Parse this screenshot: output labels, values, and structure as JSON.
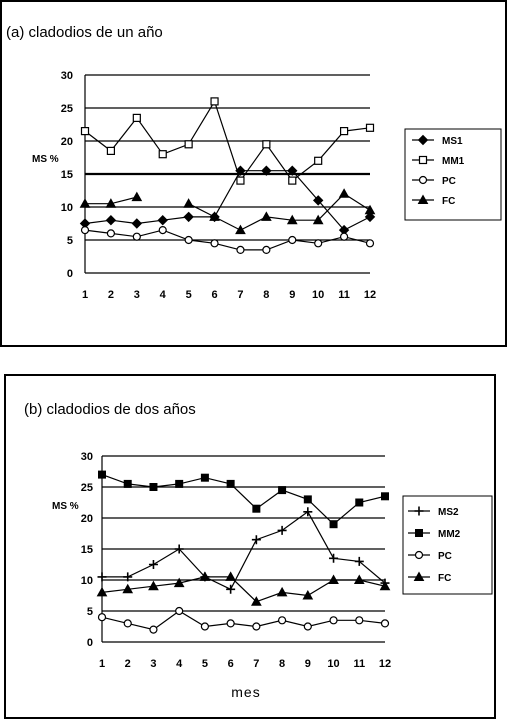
{
  "chart_data": [
    {
      "type": "line",
      "title": "(a) cladodios de un año",
      "ylabel": "MS %",
      "xlabel": "",
      "categories": [
        "1",
        "2",
        "3",
        "4",
        "5",
        "6",
        "7",
        "8",
        "9",
        "10",
        "11",
        "12"
      ],
      "ylim": [
        0,
        30
      ],
      "yticks": [
        0,
        5,
        10,
        15,
        20,
        25,
        30
      ],
      "grid": true,
      "legend_position": "right",
      "series": [
        {
          "name": "MS1",
          "marker": "diamond",
          "values": [
            7.5,
            8,
            7.5,
            8,
            8.5,
            8.5,
            15.5,
            15.5,
            15.5,
            11,
            6.5,
            8.5
          ]
        },
        {
          "name": "MM1",
          "marker": "square",
          "values": [
            21.5,
            18.5,
            23.5,
            18,
            19.5,
            26,
            14,
            19.5,
            14,
            17,
            21.5,
            22
          ]
        },
        {
          "name": "PC",
          "marker": "circle",
          "values": [
            6.5,
            6,
            5.5,
            6.5,
            5,
            4.5,
            3.5,
            3.5,
            5,
            4.5,
            5.5,
            4.5
          ]
        },
        {
          "name": "FC",
          "marker": "triangle",
          "values": [
            10.5,
            10.5,
            11.5,
            null,
            10.5,
            8.5,
            6.5,
            8.5,
            8,
            8,
            12,
            9.5
          ]
        }
      ]
    },
    {
      "type": "line",
      "title": "(b) cladodios de dos años",
      "ylabel": "MS %",
      "xlabel": "mes",
      "categories": [
        "1",
        "2",
        "3",
        "4",
        "5",
        "6",
        "7",
        "8",
        "9",
        "10",
        "11",
        "12"
      ],
      "ylim": [
        0,
        30
      ],
      "yticks": [
        0,
        5,
        10,
        15,
        20,
        25,
        30
      ],
      "grid": true,
      "legend_position": "right",
      "series": [
        {
          "name": "MS2",
          "marker": "plus",
          "values": [
            10.5,
            10.5,
            12.5,
            15,
            10.5,
            8.5,
            16.5,
            18,
            21,
            13.5,
            13,
            9.5
          ]
        },
        {
          "name": "MM2",
          "marker": "square-filled",
          "values": [
            27,
            25.5,
            25,
            25.5,
            26.5,
            25.5,
            21.5,
            24.5,
            23,
            19,
            22.5,
            23.5
          ]
        },
        {
          "name": "PC",
          "marker": "circle",
          "values": [
            4,
            3,
            2,
            5,
            2.5,
            3,
            2.5,
            3.5,
            2.5,
            3.5,
            3.5,
            3
          ]
        },
        {
          "name": "FC",
          "marker": "triangle",
          "values": [
            8,
            8.5,
            9,
            9.5,
            10.5,
            10.5,
            6.5,
            8,
            7.5,
            10,
            10,
            9
          ]
        }
      ]
    }
  ]
}
